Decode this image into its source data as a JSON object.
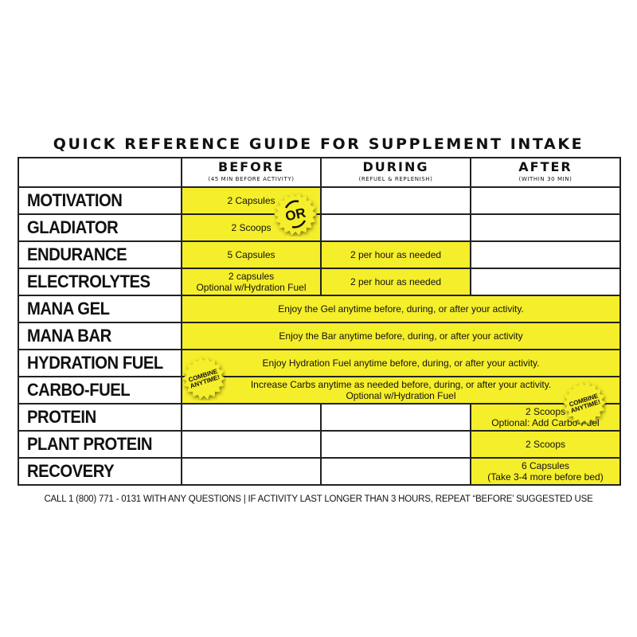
{
  "title": "QUICK REFERENCE GUIDE FOR SUPPLEMENT INTAKE",
  "columns": [
    {
      "label": "BEFORE",
      "sub": "(45 min before activity)"
    },
    {
      "label": "DURING",
      "sub": "(refuel & replenish)"
    },
    {
      "label": "AFTER",
      "sub": "(within 30 min)"
    }
  ],
  "rows": [
    {
      "name": "MOTIVATION",
      "before": "2 Capsules",
      "during": "",
      "after": ""
    },
    {
      "name": "GLADIATOR",
      "before": "2 Scoops",
      "during": "",
      "after": ""
    },
    {
      "name": "ENDURANCE",
      "before": "5 Capsules",
      "during": "2 per hour as needed",
      "after": ""
    },
    {
      "name": "ELECTROLYTES",
      "before": "2 capsules",
      "before2": "Optional w/Hydration Fuel",
      "during": "2 per hour as needed",
      "after": ""
    },
    {
      "name": "MANA GEL",
      "all": "Enjoy the Gel anytime before, during, or after your activity."
    },
    {
      "name": "MANA BAR",
      "all": "Enjoy the Bar anytime before, during, or after your activity"
    },
    {
      "name": "HYDRATION FUEL",
      "all": "Enjoy Hydration Fuel anytime before, during, or after your activity."
    },
    {
      "name": "CARBO-FUEL",
      "all": "Increase Carbs anytime as needed before, during, or after your activity.",
      "all2": "Optional w/Hydration Fuel"
    },
    {
      "name": "PROTEIN",
      "before": "",
      "during": "",
      "after": "2 Scoops",
      "after2": "Optional: Add Carbo-Fuel"
    },
    {
      "name": "PLANT PROTEIN",
      "before": "",
      "during": "",
      "after": "2 Scoops"
    },
    {
      "name": "RECOVERY",
      "before": "",
      "during": "",
      "after": "6 Capsules",
      "after2": "(Take 3-4 more before bed)"
    }
  ],
  "badges": {
    "or": "OR",
    "combine": "COMBINE",
    "anytime": "ANYTIME!"
  },
  "footer": "CALL 1 (800) 771 - 0131 WITH ANY QUESTIONS | IF ACTIVITY LAST LONGER THAN 3 HOURS, REPEAT “BEFORE’ SUGGESTED USE",
  "colors": {
    "highlight": "#f5ee2a",
    "border": "#222222"
  }
}
